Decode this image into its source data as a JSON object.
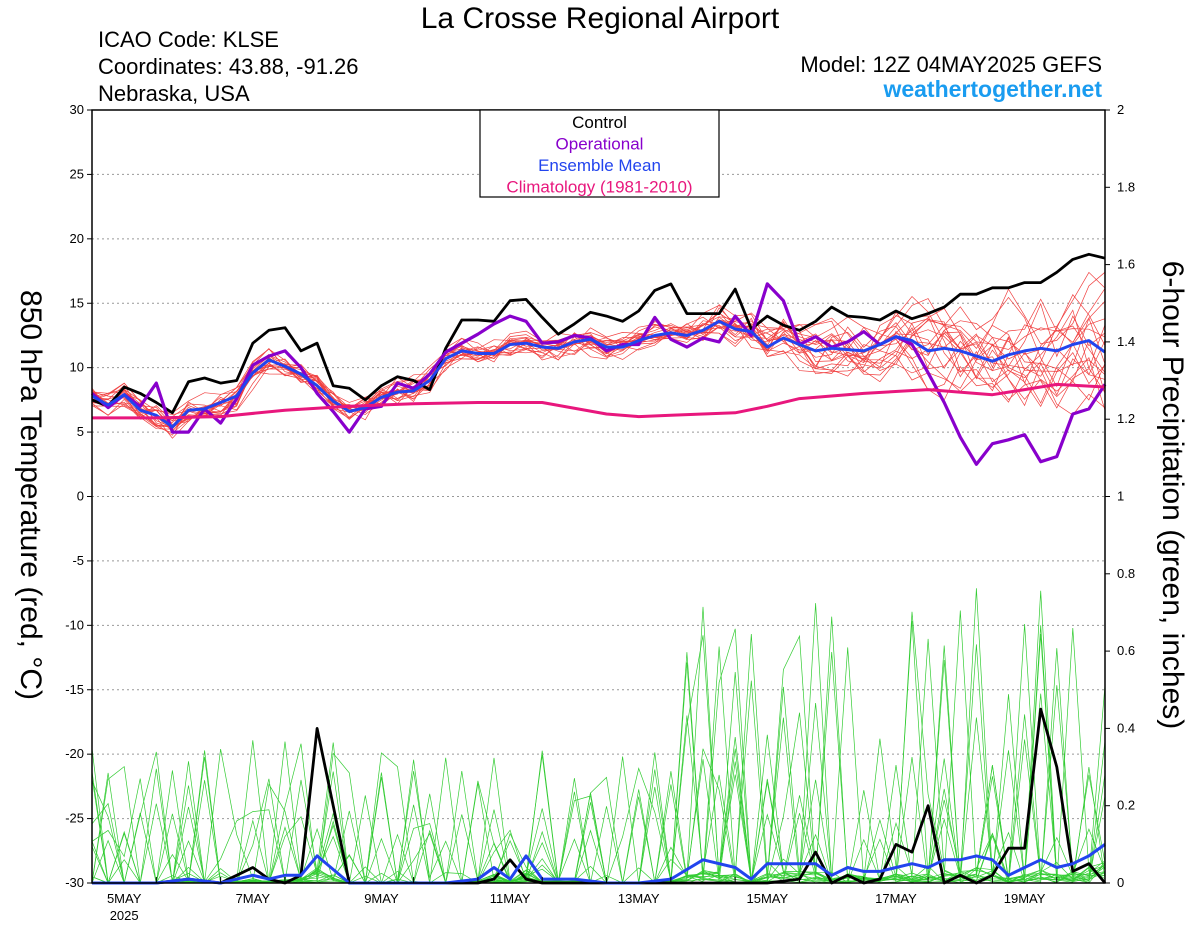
{
  "header": {
    "title": "La Crosse Regional Airport",
    "icao": "ICAO Code: KLSE",
    "coordinates": "Coordinates: 43.88, -91.26",
    "location": "Nebraska, USA",
    "model": "Model: 12Z 04MAY2025 GEFS",
    "site": "weathertogether.net"
  },
  "colors": {
    "members_temp": "#f04040",
    "members_precip": "#33cc33",
    "control": "#000000",
    "operational": "#8800cc",
    "ensemble_mean": "#2244ee",
    "climatology": "#e8177d",
    "site": "#1a9cf0"
  },
  "chart_data": {
    "type": "line",
    "ylabel": "850 hPa Temperature (red, °C)",
    "y2label": "6-hour Precipitation (green, inches)",
    "ylim": [
      -30,
      30
    ],
    "y2lim": [
      0,
      2
    ],
    "yticks": [
      "30",
      "25",
      "20",
      "15",
      "10",
      "5",
      "0",
      "-5",
      "-10",
      "-15",
      "-20",
      "-25",
      "-30"
    ],
    "y2ticks": [
      "2",
      "1.8",
      "1.6",
      "1.4",
      "1.2",
      "1",
      "0.8",
      "0.6",
      "0.4",
      "0.2",
      "0"
    ],
    "xlim": [
      0,
      15.75
    ],
    "xticks": [
      {
        "x": 0.5,
        "label": "5MAY",
        "sub": "2025"
      },
      {
        "x": 2.5,
        "label": "7MAY"
      },
      {
        "x": 4.5,
        "label": "9MAY"
      },
      {
        "x": 6.5,
        "label": "11MAY"
      },
      {
        "x": 8.5,
        "label": "13MAY"
      },
      {
        "x": 10.5,
        "label": "15MAY"
      },
      {
        "x": 12.5,
        "label": "17MAY"
      },
      {
        "x": 14.5,
        "label": "19MAY"
      }
    ],
    "grid": true,
    "legend": {
      "placement": "top-center",
      "entries": [
        "Control",
        "Operational",
        "Ensemble Mean",
        "Climatology (1981-2010)"
      ]
    },
    "series": [
      {
        "name": "Control",
        "axis": "temp",
        "x": [
          0,
          0.25,
          0.5,
          0.75,
          1,
          1.25,
          1.5,
          1.75,
          2,
          2.25,
          2.5,
          2.75,
          3,
          3.25,
          3.5,
          3.75,
          4,
          4.25,
          4.5,
          4.75,
          5,
          5.25,
          5.5,
          5.75,
          6,
          6.25,
          6.5,
          6.75,
          7,
          7.25,
          7.5,
          7.75,
          8,
          8.25,
          8.5,
          8.75,
          9,
          9.25,
          9.5,
          9.75,
          10,
          10.25,
          10.5,
          10.75,
          11,
          11.25,
          11.5,
          11.75,
          12,
          12.25,
          12.5,
          12.75,
          13,
          13.25,
          13.5,
          13.75,
          14,
          14.25,
          14.5,
          14.75,
          15,
          15.25,
          15.5,
          15.75
        ],
        "y": [
          7.5,
          7.0,
          8.5,
          8.0,
          7.3,
          6.5,
          8.9,
          9.2,
          8.8,
          9.0,
          11.9,
          12.9,
          13.1,
          11.3,
          11.9,
          8.6,
          8.4,
          7.5,
          8.6,
          9.3,
          9.0,
          8.3,
          11.5,
          13.7,
          13.7,
          13.6,
          15.2,
          15.3,
          13.9,
          12.6,
          13.4,
          14.3,
          14.0,
          13.6,
          14.4,
          16.0,
          16.5,
          14.2,
          14.2,
          14.2,
          16.1,
          13.0,
          14.0,
          13.3,
          12.9,
          13.6,
          14.7,
          14.0,
          13.9,
          13.7,
          14.4,
          13.8,
          14.2,
          14.7,
          15.7,
          15.7,
          16.2,
          16.2,
          16.6,
          16.6,
          17.4,
          18.4,
          18.8,
          18.5
        ]
      },
      {
        "name": "Operational",
        "axis": "temp",
        "x": [
          0,
          0.25,
          0.5,
          0.75,
          1,
          1.25,
          1.5,
          1.75,
          2,
          2.25,
          2.5,
          2.75,
          3,
          3.25,
          3.5,
          3.75,
          4,
          4.25,
          4.5,
          4.75,
          5,
          5.25,
          5.5,
          5.75,
          6,
          6.25,
          6.5,
          6.75,
          7,
          7.25,
          7.5,
          7.75,
          8,
          8.25,
          8.5,
          8.75,
          9,
          9.25,
          9.5,
          9.75,
          10,
          10.25,
          10.5,
          10.75,
          11,
          11.25,
          11.5,
          11.75,
          12,
          12.25,
          12.5,
          12.75,
          13,
          13.25,
          13.5,
          13.75,
          14,
          14.25,
          14.5,
          14.75,
          15,
          15.25,
          15.5,
          15.75
        ],
        "y": [
          8.0,
          6.9,
          7.9,
          7.0,
          8.8,
          5.0,
          5.0,
          6.8,
          5.7,
          7.6,
          10.2,
          10.9,
          11.3,
          10.0,
          8.0,
          6.6,
          5.0,
          6.8,
          7.0,
          8.8,
          8.4,
          9.5,
          11.2,
          11.9,
          12.6,
          13.4,
          14.0,
          13.6,
          11.9,
          12.0,
          12.5,
          12.3,
          11.3,
          11.8,
          11.8,
          13.9,
          12.2,
          11.6,
          12.3,
          12.0,
          14.0,
          12.5,
          16.5,
          15.2,
          11.8,
          12.4,
          11.6,
          12.0,
          12.8,
          11.8,
          12.4,
          11.8,
          9.6,
          7.3,
          4.6,
          2.5,
          4.1,
          4.4,
          4.8,
          2.7,
          3.1,
          6.4,
          6.8,
          8.7
        ]
      },
      {
        "name": "Ensemble Mean",
        "axis": "temp",
        "x": [
          0,
          0.25,
          0.5,
          0.75,
          1,
          1.25,
          1.5,
          1.75,
          2,
          2.25,
          2.5,
          2.75,
          3,
          3.25,
          3.5,
          3.75,
          4,
          4.25,
          4.5,
          4.75,
          5,
          5.25,
          5.5,
          5.75,
          6,
          6.25,
          6.5,
          6.75,
          7,
          7.25,
          7.5,
          7.75,
          8,
          8.25,
          8.5,
          8.75,
          9,
          9.25,
          9.5,
          9.75,
          10,
          10.25,
          10.5,
          10.75,
          11,
          11.25,
          11.5,
          11.75,
          12,
          12.25,
          12.5,
          12.75,
          13,
          13.25,
          13.5,
          13.75,
          14,
          14.25,
          14.5,
          14.75,
          15,
          15.25,
          15.5,
          15.75
        ],
        "y": [
          7.8,
          7.1,
          7.9,
          6.7,
          6.3,
          5.4,
          6.7,
          6.8,
          7.3,
          7.8,
          9.6,
          10.6,
          10.1,
          9.5,
          8.6,
          7.4,
          6.6,
          6.9,
          7.7,
          8.1,
          8.2,
          9.0,
          10.7,
          11.3,
          11.1,
          11.1,
          11.8,
          11.9,
          11.6,
          11.5,
          12.0,
          12.2,
          11.6,
          11.6,
          12.1,
          12.5,
          12.7,
          12.5,
          12.9,
          13.6,
          13.0,
          12.8,
          11.6,
          12.3,
          11.8,
          11.3,
          11.5,
          11.4,
          11.3,
          11.8,
          12.4,
          12.1,
          11.3,
          11.5,
          11.3,
          10.9,
          10.5,
          11.0,
          11.3,
          11.5,
          11.3,
          11.8,
          12.1,
          11.2
        ]
      },
      {
        "name": "Climatology (1981-2010)",
        "axis": "temp",
        "x": [
          0,
          1,
          2,
          3,
          4,
          5,
          6,
          7,
          8,
          8.5,
          9,
          9.5,
          10,
          10.5,
          11,
          12,
          13,
          14,
          14.5,
          15,
          15.75
        ],
        "y": [
          6.1,
          6.1,
          6.2,
          6.7,
          7.0,
          7.2,
          7.3,
          7.3,
          6.4,
          6.2,
          6.3,
          6.4,
          6.5,
          7.0,
          7.6,
          8.0,
          8.3,
          7.9,
          8.3,
          8.7,
          8.5
        ]
      },
      {
        "name": "Control",
        "axis": "precip",
        "x": [
          0,
          0.5,
          1,
          1.5,
          2,
          2.25,
          2.5,
          2.75,
          3,
          3.25,
          3.5,
          4,
          5,
          5.5,
          6,
          6.25,
          6.5,
          6.75,
          7,
          7.5,
          8,
          8.5,
          9,
          9.5,
          10,
          10.5,
          11,
          11.25,
          11.5,
          11.75,
          12,
          12.25,
          12.5,
          12.75,
          13,
          13.25,
          13.5,
          13.75,
          14,
          14.25,
          14.5,
          14.75,
          15,
          15.25,
          15.5,
          15.75
        ],
        "y": [
          0,
          0,
          0,
          0.01,
          0,
          0.02,
          0.04,
          0.01,
          0,
          0.02,
          0.4,
          0,
          0,
          0,
          0,
          0.01,
          0.06,
          0.01,
          0,
          0,
          0,
          0,
          0,
          0,
          0,
          0,
          0.01,
          0.08,
          0,
          0.02,
          0,
          0.01,
          0.1,
          0.08,
          0.2,
          0,
          0.02,
          0,
          0.02,
          0.09,
          0.09,
          0.45,
          0.3,
          0.03,
          0.05,
          0
        ]
      },
      {
        "name": "Ensemble Mean",
        "axis": "precip",
        "x": [
          0,
          0.5,
          1,
          1.5,
          2,
          2.25,
          2.5,
          2.75,
          3,
          3.25,
          3.5,
          4,
          5,
          5.5,
          6,
          6.25,
          6.5,
          6.75,
          7,
          7.5,
          8,
          8.5,
          9,
          9.5,
          10,
          10.25,
          10.5,
          10.75,
          11,
          11.25,
          11.5,
          11.75,
          12,
          12.25,
          12.5,
          12.75,
          13,
          13.25,
          13.5,
          13.75,
          14,
          14.25,
          14.5,
          14.75,
          15,
          15.25,
          15.5,
          15.75
        ],
        "y": [
          0,
          0,
          0,
          0.01,
          0,
          0.01,
          0.02,
          0.01,
          0.02,
          0.02,
          0.07,
          0,
          0,
          0,
          0.01,
          0.04,
          0.01,
          0.07,
          0.01,
          0.01,
          0,
          0,
          0.01,
          0.06,
          0.04,
          0.01,
          0.05,
          0.05,
          0.05,
          0.05,
          0.02,
          0.04,
          0.03,
          0.03,
          0.04,
          0.05,
          0.04,
          0.06,
          0.06,
          0.07,
          0.06,
          0.02,
          0.04,
          0.06,
          0.04,
          0.05,
          0.07,
          0.1
        ]
      }
    ]
  }
}
